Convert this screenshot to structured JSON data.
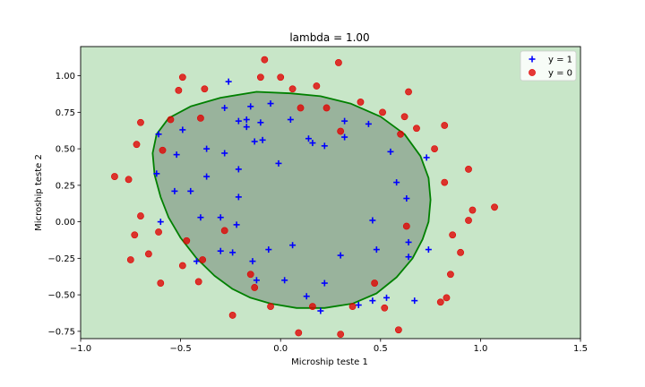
{
  "chart_data": {
    "type": "scatter",
    "title": "lambda = 1.00",
    "xlabel": "Microship teste 1",
    "ylabel": "Microship teste 2",
    "xlim": [
      -1.0,
      1.5
    ],
    "ylim": [
      -0.8,
      1.2
    ],
    "xticks": [
      -1.0,
      -0.5,
      0.0,
      0.5,
      1.0,
      1.5
    ],
    "yticks": [
      -0.75,
      -0.5,
      -0.25,
      0.0,
      0.25,
      0.5,
      0.75,
      1.0
    ],
    "xtick_labels": [
      "−1.0",
      "−0.5",
      "0.0",
      "0.5",
      "1.0",
      "1.5"
    ],
    "ytick_labels": [
      "−0.75",
      "−0.50",
      "−0.25",
      "0.00",
      "0.25",
      "0.50",
      "0.75",
      "1.00"
    ],
    "grid": false,
    "legend": {
      "placement": "top-right",
      "entries": [
        "y = 1",
        "y = 0"
      ]
    },
    "colors": {
      "background_region": "#c8e6c8",
      "inside_region": "#99b39c",
      "boundary": "#008000",
      "positive": "#0000ff",
      "negative": "#e00000"
    },
    "series": [
      {
        "name": "y = 1",
        "marker": "plus",
        "points": [
          [
            -0.26,
            0.96
          ],
          [
            -0.28,
            0.78
          ],
          [
            -0.15,
            0.79
          ],
          [
            -0.05,
            0.81
          ],
          [
            -0.21,
            0.69
          ],
          [
            -0.17,
            0.7
          ],
          [
            -0.1,
            0.68
          ],
          [
            -0.17,
            0.65
          ],
          [
            0.05,
            0.7
          ],
          [
            0.32,
            0.69
          ],
          [
            0.44,
            0.67
          ],
          [
            -0.61,
            0.6
          ],
          [
            -0.49,
            0.63
          ],
          [
            -0.13,
            0.55
          ],
          [
            -0.09,
            0.56
          ],
          [
            0.14,
            0.57
          ],
          [
            0.16,
            0.54
          ],
          [
            0.22,
            0.52
          ],
          [
            0.32,
            0.58
          ],
          [
            -0.52,
            0.46
          ],
          [
            -0.37,
            0.5
          ],
          [
            -0.28,
            0.47
          ],
          [
            0.55,
            0.48
          ],
          [
            0.73,
            0.44
          ],
          [
            -0.01,
            0.4
          ],
          [
            -0.62,
            0.33
          ],
          [
            -0.21,
            0.36
          ],
          [
            -0.37,
            0.31
          ],
          [
            0.58,
            0.27
          ],
          [
            -0.53,
            0.21
          ],
          [
            -0.45,
            0.21
          ],
          [
            -0.21,
            0.17
          ],
          [
            0.63,
            0.16
          ],
          [
            -0.4,
            0.03
          ],
          [
            -0.3,
            0.03
          ],
          [
            -0.6,
            0.0
          ],
          [
            -0.22,
            -0.02
          ],
          [
            0.46,
            0.01
          ],
          [
            0.64,
            -0.14
          ],
          [
            -0.3,
            -0.2
          ],
          [
            -0.24,
            -0.21
          ],
          [
            -0.06,
            -0.19
          ],
          [
            0.06,
            -0.16
          ],
          [
            0.48,
            -0.19
          ],
          [
            0.74,
            -0.19
          ],
          [
            0.3,
            -0.23
          ],
          [
            -0.14,
            -0.27
          ],
          [
            0.64,
            -0.24
          ],
          [
            -0.42,
            -0.27
          ],
          [
            -0.12,
            -0.4
          ],
          [
            0.02,
            -0.4
          ],
          [
            0.22,
            -0.42
          ],
          [
            0.13,
            -0.51
          ],
          [
            0.53,
            -0.52
          ],
          [
            0.46,
            -0.54
          ],
          [
            0.67,
            -0.54
          ],
          [
            0.39,
            -0.57
          ],
          [
            0.2,
            -0.61
          ]
        ]
      },
      {
        "name": "y = 0",
        "marker": "circle",
        "points": [
          [
            -0.08,
            1.11
          ],
          [
            0.29,
            1.09
          ],
          [
            -0.49,
            0.99
          ],
          [
            -0.1,
            0.99
          ],
          [
            0.0,
            0.99
          ],
          [
            0.18,
            0.93
          ],
          [
            -0.51,
            0.9
          ],
          [
            -0.38,
            0.91
          ],
          [
            0.06,
            0.91
          ],
          [
            0.64,
            0.89
          ],
          [
            0.4,
            0.82
          ],
          [
            0.1,
            0.78
          ],
          [
            0.23,
            0.78
          ],
          [
            0.51,
            0.75
          ],
          [
            0.62,
            0.72
          ],
          [
            -0.55,
            0.7
          ],
          [
            -0.4,
            0.71
          ],
          [
            -0.7,
            0.68
          ],
          [
            0.82,
            0.66
          ],
          [
            0.68,
            0.64
          ],
          [
            0.3,
            0.62
          ],
          [
            0.6,
            0.6
          ],
          [
            -0.72,
            0.53
          ],
          [
            -0.59,
            0.49
          ],
          [
            0.77,
            0.5
          ],
          [
            0.94,
            0.36
          ],
          [
            -0.83,
            0.31
          ],
          [
            -0.76,
            0.29
          ],
          [
            0.82,
            0.27
          ],
          [
            1.07,
            0.1
          ],
          [
            0.96,
            0.08
          ],
          [
            -0.7,
            0.04
          ],
          [
            0.94,
            0.01
          ],
          [
            0.63,
            -0.03
          ],
          [
            -0.28,
            -0.06
          ],
          [
            -0.61,
            -0.07
          ],
          [
            -0.73,
            -0.09
          ],
          [
            0.86,
            -0.09
          ],
          [
            -0.47,
            -0.13
          ],
          [
            -0.66,
            -0.22
          ],
          [
            0.9,
            -0.21
          ],
          [
            -0.75,
            -0.26
          ],
          [
            -0.39,
            -0.26
          ],
          [
            -0.49,
            -0.3
          ],
          [
            -0.15,
            -0.36
          ],
          [
            0.85,
            -0.36
          ],
          [
            -0.6,
            -0.42
          ],
          [
            -0.41,
            -0.41
          ],
          [
            0.47,
            -0.42
          ],
          [
            -0.13,
            -0.45
          ],
          [
            0.83,
            -0.52
          ],
          [
            0.8,
            -0.55
          ],
          [
            -0.05,
            -0.58
          ],
          [
            0.16,
            -0.58
          ],
          [
            0.36,
            -0.58
          ],
          [
            0.52,
            -0.59
          ],
          [
            -0.24,
            -0.64
          ],
          [
            0.09,
            -0.76
          ],
          [
            0.3,
            -0.77
          ],
          [
            0.59,
            -0.74
          ]
        ]
      }
    ],
    "decision_boundary": [
      [
        -0.12,
        0.89
      ],
      [
        0.05,
        0.88
      ],
      [
        0.2,
        0.86
      ],
      [
        0.35,
        0.81
      ],
      [
        0.5,
        0.72
      ],
      [
        0.62,
        0.6
      ],
      [
        0.7,
        0.45
      ],
      [
        0.74,
        0.3
      ],
      [
        0.75,
        0.15
      ],
      [
        0.74,
        0.0
      ],
      [
        0.71,
        -0.12
      ],
      [
        0.66,
        -0.25
      ],
      [
        0.58,
        -0.38
      ],
      [
        0.48,
        -0.49
      ],
      [
        0.36,
        -0.56
      ],
      [
        0.22,
        -0.59
      ],
      [
        0.08,
        -0.59
      ],
      [
        -0.05,
        -0.56
      ],
      [
        -0.15,
        -0.52
      ],
      [
        -0.24,
        -0.46
      ],
      [
        -0.33,
        -0.37
      ],
      [
        -0.42,
        -0.25
      ],
      [
        -0.5,
        -0.11
      ],
      [
        -0.56,
        0.03
      ],
      [
        -0.6,
        0.17
      ],
      [
        -0.63,
        0.32
      ],
      [
        -0.64,
        0.47
      ],
      [
        -0.62,
        0.6
      ],
      [
        -0.56,
        0.71
      ],
      [
        -0.45,
        0.79
      ],
      [
        -0.3,
        0.85
      ]
    ]
  }
}
